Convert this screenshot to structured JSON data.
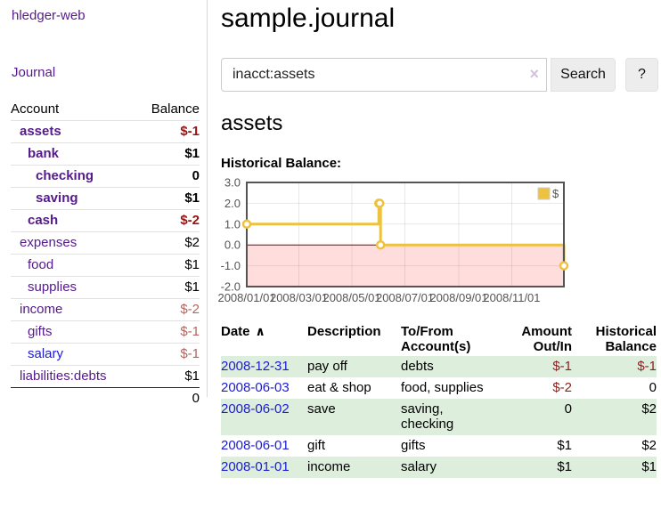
{
  "sidebar": {
    "brand": "hledger-web",
    "nav": [
      {
        "label": "Journal"
      }
    ],
    "accounts_table": {
      "headers": {
        "account": "Account",
        "balance": "Balance"
      },
      "rows": [
        {
          "name": "assets",
          "level": 1,
          "bold": true,
          "balance": "$-1",
          "balance_style": "neg-strong",
          "link_style": "purple"
        },
        {
          "name": "bank",
          "level": 2,
          "bold": true,
          "balance": "$1",
          "balance_style": "plain",
          "link_style": "purple"
        },
        {
          "name": "checking",
          "level": 3,
          "bold": true,
          "balance": "0",
          "balance_style": "plain",
          "link_style": "purple"
        },
        {
          "name": "saving",
          "level": 3,
          "bold": true,
          "balance": "$1",
          "balance_style": "plain",
          "link_style": "purple"
        },
        {
          "name": "cash",
          "level": 2,
          "bold": true,
          "balance": "$-2",
          "balance_style": "neg-strong",
          "link_style": "purple"
        },
        {
          "name": "expenses",
          "level": 1,
          "bold": false,
          "balance": "$2",
          "balance_style": "plain",
          "link_style": "purple"
        },
        {
          "name": "food",
          "level": 2,
          "bold": false,
          "balance": "$1",
          "balance_style": "plain",
          "link_style": "purple"
        },
        {
          "name": "supplies",
          "level": 2,
          "bold": false,
          "balance": "$1",
          "balance_style": "plain",
          "link_style": "purple"
        },
        {
          "name": "income",
          "level": 1,
          "bold": false,
          "balance": "$-2",
          "balance_style": "neg-muted",
          "link_style": "purple"
        },
        {
          "name": "gifts",
          "level": 2,
          "bold": false,
          "balance": "$-1",
          "balance_style": "neg-muted",
          "link_style": "purple"
        },
        {
          "name": "salary",
          "level": 2,
          "bold": false,
          "balance": "$-1",
          "balance_style": "neg-muted",
          "link_style": "blue"
        },
        {
          "name": "liabilities:debts",
          "level": 1,
          "bold": false,
          "balance": "$1",
          "balance_style": "plain",
          "link_style": "purple"
        }
      ],
      "total": "0"
    }
  },
  "header": {
    "title": "sample.journal"
  },
  "search": {
    "value": "inacct:assets",
    "clear_icon": "×",
    "button": "Search",
    "help_button": "?"
  },
  "account_page": {
    "heading": "assets",
    "chart_label": "Historical Balance:"
  },
  "chart_data": {
    "type": "line",
    "step": true,
    "legend": "$",
    "legend_position": "top-right",
    "grid": true,
    "x_type": "date",
    "x_range_days": 365,
    "ylim": [
      -2,
      3
    ],
    "y_ticks": [
      {
        "label": "-2.0",
        "value": -2
      },
      {
        "label": "-1.0",
        "value": -1
      },
      {
        "label": "0.0",
        "value": 0
      },
      {
        "label": "1.0",
        "value": 1
      },
      {
        "label": "2.0",
        "value": 2
      },
      {
        "label": "3.0",
        "value": 3
      }
    ],
    "x_ticks": [
      {
        "label": "2008/01/01",
        "day": 0
      },
      {
        "label": "2008/03/01",
        "day": 60
      },
      {
        "label": "2008/05/01",
        "day": 121
      },
      {
        "label": "2008/07/01",
        "day": 182
      },
      {
        "label": "2008/09/01",
        "day": 244
      },
      {
        "label": "2008/11/01",
        "day": 305
      }
    ],
    "points": [
      {
        "date": "2008-01-01",
        "day": 0,
        "value": 1
      },
      {
        "date": "2008-06-01",
        "day": 152,
        "value": 2
      },
      {
        "date": "2008-06-02",
        "day": 153,
        "value": 2
      },
      {
        "date": "2008-06-03",
        "day": 154,
        "value": 0
      },
      {
        "date": "2008-12-31",
        "day": 365,
        "value": -1
      }
    ],
    "line_color": "#edc240",
    "marker_fill": "#ffffff",
    "negative_region_fill": "#ffdddd",
    "zero_line_color": "#8b0000",
    "border_color": "#545454",
    "tick_label_color": "#545454"
  },
  "register_table": {
    "sort_icon": "∧",
    "headers": [
      "Date",
      "Description",
      "To/From Account(s)",
      "Amount Out/In",
      "Historical Balance"
    ],
    "rows": [
      {
        "date": "2008-12-31",
        "description": "pay off",
        "accounts": "debts",
        "amount": "$-1",
        "amount_neg": true,
        "balance": "$-1",
        "balance_neg": true
      },
      {
        "date": "2008-06-03",
        "description": "eat & shop",
        "accounts": "food, supplies",
        "amount": "$-2",
        "amount_neg": true,
        "balance": "0",
        "balance_neg": false
      },
      {
        "date": "2008-06-02",
        "description": "save",
        "accounts": "saving, checking",
        "amount": "0",
        "amount_neg": false,
        "balance": "$2",
        "balance_neg": false
      },
      {
        "date": "2008-06-01",
        "description": "gift",
        "accounts": "gifts",
        "amount": "$1",
        "amount_neg": false,
        "balance": "$2",
        "balance_neg": false
      },
      {
        "date": "2008-01-01",
        "description": "income",
        "accounts": "salary",
        "amount": "$1",
        "amount_neg": false,
        "balance": "$1",
        "balance_neg": false
      }
    ]
  },
  "colors": {
    "link_purple": "#551a8b",
    "link_blue": "#1b1bd6",
    "negative_strong": "#941414",
    "negative_muted": "#b2655e",
    "row_stripe_green": "#ddeedd",
    "chart_line_gold": "#edc240",
    "chart_negative_pink": "#ffdddd",
    "zero_line_red": "#8b0000"
  }
}
